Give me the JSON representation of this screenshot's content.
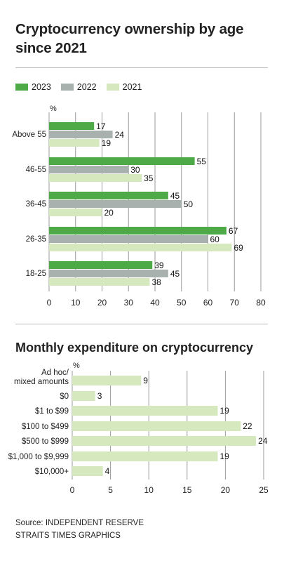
{
  "chart_data": [
    {
      "type": "bar",
      "title": "Cryptocurrency ownership by age since 2021",
      "unit_label": "%",
      "categories": [
        "Above 55",
        "46-55",
        "36-45",
        "26-35",
        "18-25"
      ],
      "series": [
        {
          "name": "2023",
          "color": "#4daa47",
          "values": [
            17,
            55,
            45,
            67,
            39
          ]
        },
        {
          "name": "2022",
          "color": "#a9b1ae",
          "values": [
            24,
            30,
            50,
            60,
            45
          ]
        },
        {
          "name": "2021",
          "color": "#d6e8bd",
          "values": [
            19,
            35,
            20,
            69,
            38
          ]
        }
      ],
      "xticks": [
        0,
        10,
        20,
        30,
        40,
        50,
        60,
        70,
        80
      ],
      "xlim": [
        0,
        80
      ],
      "orientation": "horizontal",
      "grid": true,
      "legend": "top-left"
    },
    {
      "type": "bar",
      "title": "Monthly expenditure on cryptocurrency",
      "unit_label": "%",
      "categories": [
        "Ad hoc/ mixed amounts",
        "$0",
        "$1 to $99",
        "$100 to $499",
        "$500 to $999",
        "$1,000 to $9,999",
        "$10,000+"
      ],
      "category_lines": [
        [
          "Ad hoc/",
          "mixed amounts"
        ],
        [
          "$0"
        ],
        [
          "$1 to $99"
        ],
        [
          "$100 to $499"
        ],
        [
          "$500 to $999"
        ],
        [
          "$1,000 to $9,999"
        ],
        [
          "$10,000+"
        ]
      ],
      "series": [
        {
          "color": "#d6e8bd",
          "values": [
            9,
            3,
            19,
            22,
            24,
            19,
            4
          ]
        }
      ],
      "xticks": [
        0,
        5,
        10,
        15,
        20,
        25
      ],
      "xlim": [
        0,
        25
      ],
      "orientation": "horizontal",
      "grid": true
    }
  ],
  "source_line1": "Source: INDEPENDENT RESERVE",
  "source_line2": "STRAITS TIMES GRAPHICS"
}
